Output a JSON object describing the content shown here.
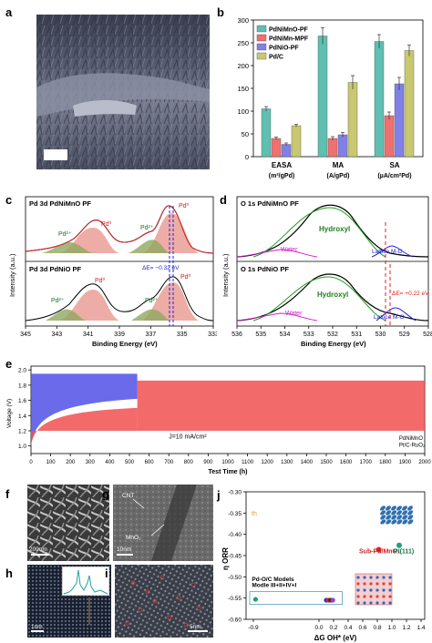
{
  "panel_letters": {
    "a": "a",
    "b": "b",
    "c": "c",
    "d": "d",
    "e": "e",
    "f": "f",
    "g": "g",
    "h": "h",
    "i": "i",
    "j": "j"
  },
  "chart_b": {
    "type": "bar",
    "legend": [
      "PdNiMnO-PF",
      "PdNiMn-MPF",
      "PdNiO-PF",
      "Pd/C"
    ],
    "colors": [
      "#5fbfb0",
      "#f07070",
      "#8080e8",
      "#c8c870"
    ],
    "categories": [
      "EASA",
      "MA",
      "SA"
    ],
    "category_subs": [
      "(m²/gPd)",
      "(A/gPd)",
      "(µA/cm²Pd)"
    ],
    "values": [
      [
        105,
        40,
        27,
        68
      ],
      [
        265,
        40,
        48,
        163
      ],
      [
        253,
        90,
        160,
        233
      ]
    ],
    "errors": [
      [
        5,
        3,
        3,
        3
      ],
      [
        18,
        4,
        5,
        15
      ],
      [
        15,
        8,
        14,
        12
      ]
    ],
    "ylim": [
      0,
      300
    ],
    "yticks": [
      "0",
      "50",
      "100",
      "150",
      "200",
      "250",
      "300"
    ]
  },
  "panel_c": {
    "top_title": "Pd 3d PdNiMnO PF",
    "bottom_title": "Pd 3d PdNiO PF",
    "ylabel": "Intensity (a.u.)",
    "xlabel": "Binding Energy (eV)",
    "xticks": [
      "345",
      "343",
      "341",
      "339",
      "337",
      "335",
      "333"
    ],
    "labels": {
      "pd2_a": "Pd²⁺",
      "pd0_a": "Pd⁰",
      "pd2_b": "Pd²⁺",
      "pd0_b": "Pd⁰"
    },
    "shift": "ΔE= −0.32 eV"
  },
  "panel_d": {
    "top_title": "O 1s PdNiMnO PF",
    "bottom_title": "O 1s PdNiO PF",
    "ylabel": "Intensity (a.u.)",
    "xlabel": "Binding Energy (eV)",
    "xticks": [
      "536",
      "535",
      "534",
      "533",
      "532",
      "531",
      "530",
      "529",
      "528"
    ],
    "labels": {
      "hydroxyl": "Hydroxyl",
      "water": "Water",
      "lattice": "Lattice M-O"
    },
    "shift": "ΔE= +0.22 eV"
  },
  "panel_e": {
    "ylabel": "Voltage (V)",
    "xlabel": "Test Time (h)",
    "yticks": [
      "1.0",
      "1.2",
      "1.4",
      "1.6",
      "1.8",
      "2.0"
    ],
    "xticks": [
      "0",
      "100",
      "200",
      "300",
      "400",
      "500",
      "600",
      "700",
      "800",
      "900",
      "1000",
      "1100",
      "1200",
      "1300",
      "1400",
      "1500",
      "1600",
      "1700",
      "1800",
      "1900",
      "2000"
    ],
    "annotation": "J=10 mA/cm²",
    "legend": [
      "PdNiMnO",
      "Pt/C-RuO₂"
    ],
    "blue_end_h": 540,
    "red_end_h": 2000
  },
  "micrographs": {
    "f_scale": "200nm",
    "g_scale": "10nm",
    "g_cnt": "CNT",
    "g_mno2": "MnO₂",
    "h_scale": "1nm",
    "i_scale": "5nm"
  },
  "panel_j": {
    "ylabel": "η ORR",
    "xlabel": "ΔG OH* (eV)",
    "yticks": [
      "-0.30",
      "-0.35",
      "-0.40",
      "-0.45",
      "-0.50",
      "-0.55",
      "-0.60"
    ],
    "xticks": [
      "-0.9",
      "0.0",
      "0.2",
      "0.4",
      "0.6",
      "0.8",
      "1.0",
      "1.2",
      "1.4"
    ],
    "ylim": [
      -0.6,
      -0.3
    ],
    "xlim": [
      -1.0,
      1.45
    ],
    "th_label": "th",
    "points": [
      {
        "x": 1.1,
        "y": -0.426,
        "color": "#20a080"
      },
      {
        "x": 0.82,
        "y": -0.436,
        "color": "#e02020"
      }
    ],
    "point_labels": [
      "Sub-Pd/MnO₂",
      "Pt(111)"
    ],
    "cluster_title": "Pd-O/C Models",
    "cluster_sub": "Modle III+II+IV+I",
    "cluster": [
      {
        "x": -0.87,
        "y": -0.553,
        "color": "#20a060"
      },
      {
        "x": 0.1,
        "y": -0.555,
        "color": "#2040c0"
      },
      {
        "x": 0.13,
        "y": -0.555,
        "color": "#e02020"
      },
      {
        "x": 0.16,
        "y": -0.555,
        "color": "#303030"
      },
      {
        "x": 0.19,
        "y": -0.555,
        "color": "#a040c0"
      }
    ]
  }
}
